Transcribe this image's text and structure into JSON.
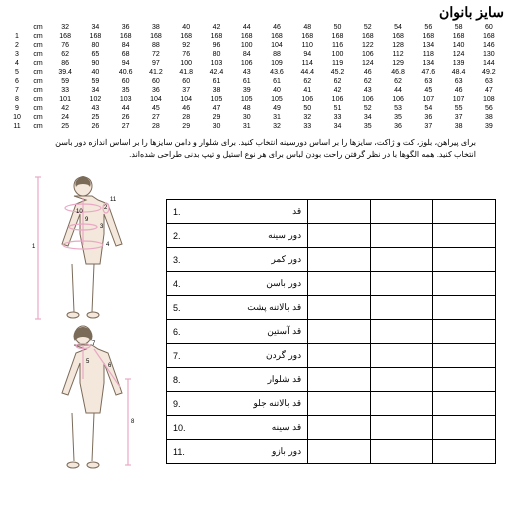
{
  "title": "سایز بانوان",
  "size_header": {
    "sizes": [
      32,
      34,
      36,
      38,
      40,
      42,
      44,
      46,
      48,
      50,
      52,
      54,
      56,
      58,
      60
    ],
    "unit": "cm"
  },
  "size_rows": [
    {
      "n": 1,
      "vals": [
        168,
        168,
        168,
        168,
        168,
        168,
        168,
        168,
        168,
        168,
        168,
        168,
        168,
        168,
        168
      ]
    },
    {
      "n": 2,
      "vals": [
        76,
        80,
        84,
        88,
        92,
        96,
        100,
        104,
        110,
        116,
        122,
        128,
        134,
        140,
        146
      ]
    },
    {
      "n": 3,
      "vals": [
        62,
        65,
        68,
        72,
        76,
        80,
        84,
        88,
        94,
        100,
        106,
        112,
        118,
        124,
        130
      ]
    },
    {
      "n": 4,
      "vals": [
        86,
        90,
        94,
        97,
        100,
        103,
        106,
        109,
        114,
        119,
        124,
        129,
        134,
        139,
        144
      ]
    },
    {
      "n": 5,
      "vals": [
        39.4,
        40,
        40.6,
        41.2,
        41.8,
        42.4,
        43,
        43.6,
        44.4,
        45.2,
        46,
        46.8,
        47.6,
        48.4,
        49.2
      ]
    },
    {
      "n": 6,
      "vals": [
        59,
        59,
        60,
        60,
        60,
        61,
        61,
        61,
        62,
        62,
        62,
        62,
        63,
        63,
        63
      ]
    },
    {
      "n": 7,
      "vals": [
        33,
        34,
        35,
        36,
        37,
        38,
        39,
        40,
        41,
        42,
        43,
        44,
        45,
        46,
        47
      ]
    },
    {
      "n": 8,
      "vals": [
        101,
        102,
        103,
        104,
        104,
        105,
        105,
        105,
        106,
        106,
        106,
        106,
        107,
        107,
        108
      ]
    },
    {
      "n": 9,
      "vals": [
        42,
        43,
        44,
        45,
        46,
        47,
        48,
        49,
        50,
        51,
        52,
        53,
        54,
        55,
        56
      ]
    },
    {
      "n": 10,
      "vals": [
        24,
        25,
        26,
        27,
        28,
        29,
        30,
        31,
        32,
        33,
        34,
        35,
        36,
        37,
        38
      ]
    },
    {
      "n": 11,
      "vals": [
        25,
        26,
        27,
        28,
        29,
        30,
        31,
        32,
        33,
        34,
        35,
        36,
        37,
        38,
        39
      ]
    }
  ],
  "note": "برای پیراهن، بلوز، کت و ژاکت، سایزها را بر اساس دورسینه انتخاب کنید. برای شلوار و دامن سایزها را بر اساس اندازه دور باسن انتخاب کنید. همه الگوها با در نظر گرفتن راحت بودن لباس برای هر نوع استیل و تیپ بدنی طراحی شده‌اند.",
  "measurements": [
    {
      "n": "1.",
      "label": "قد"
    },
    {
      "n": "2.",
      "label": "دور سینه"
    },
    {
      "n": "3.",
      "label": "دور کمر"
    },
    {
      "n": "4.",
      "label": "دور باسن"
    },
    {
      "n": "5.",
      "label": "قد بالاتنه پشت"
    },
    {
      "n": "6.",
      "label": "قد آستین"
    },
    {
      "n": "7.",
      "label": "دور گردن"
    },
    {
      "n": "8.",
      "label": "قد شلوار"
    },
    {
      "n": "9.",
      "label": "قد بالاتنه جلو"
    },
    {
      "n": "10.",
      "label": "قد سینه"
    },
    {
      "n": "11.",
      "label": "دور بازو"
    }
  ],
  "colors": {
    "line": "#7a6a58",
    "pink": "#e9a8c4",
    "flesh": "#f4e7dc",
    "border": "#000000",
    "bg": "#ffffff"
  }
}
